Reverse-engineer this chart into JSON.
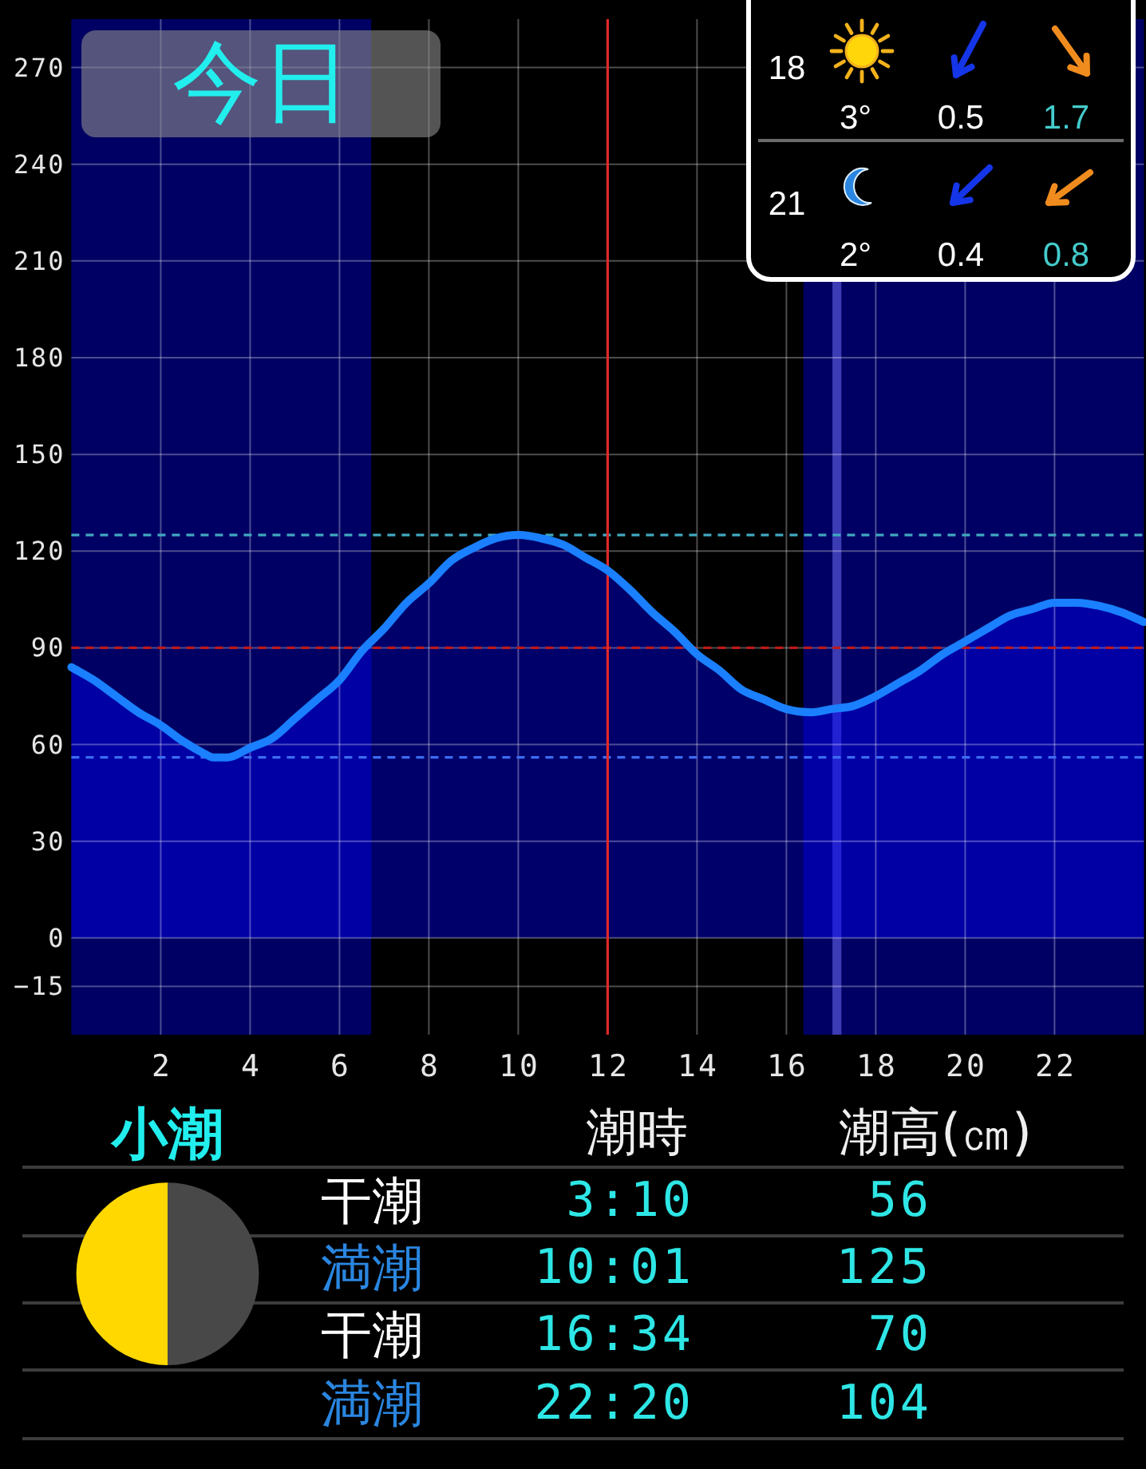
{
  "chart_data": {
    "type": "area",
    "title": "今日",
    "x": [
      0,
      0.5,
      1,
      1.5,
      2,
      2.5,
      3,
      3.17,
      3.5,
      4,
      4.5,
      5,
      5.5,
      6,
      6.5,
      7,
      7.5,
      8,
      8.5,
      9,
      9.5,
      10.02,
      10.5,
      11,
      11.5,
      12,
      12.5,
      13,
      13.5,
      14,
      14.5,
      15,
      15.5,
      16,
      16.57,
      17,
      17.5,
      18,
      18.5,
      19,
      19.5,
      20,
      20.5,
      21,
      21.5,
      22,
      22.33,
      22.5,
      23,
      23.5,
      24
    ],
    "values": [
      84,
      80,
      75,
      70,
      66,
      61,
      57,
      56,
      56,
      59,
      62,
      68,
      74,
      80,
      89,
      96,
      104,
      110,
      117,
      121,
      124,
      125,
      124,
      122,
      118,
      114,
      108,
      101,
      95,
      88,
      83,
      77,
      74,
      71,
      70,
      71,
      72,
      75,
      79,
      83,
      88,
      92,
      96,
      100,
      102,
      104,
      104,
      104,
      103,
      101,
      98
    ],
    "color": "#1a80ff",
    "xlim": [
      0,
      24
    ],
    "xticks": [
      2,
      4,
      6,
      8,
      10,
      12,
      14,
      16,
      18,
      20,
      22
    ],
    "ylim": [
      -30,
      285
    ],
    "yticks": [
      {
        "value": -15,
        "label": "−15"
      },
      0,
      30,
      60,
      90,
      120,
      150,
      180,
      210,
      240,
      270
    ],
    "grid": true,
    "ref_lines": [
      {
        "axis": "y",
        "value": 125,
        "color": "#40a8c0",
        "line_style": "dashed"
      },
      {
        "axis": "y",
        "value": 90,
        "color": "#c01818",
        "line_style": "dashed"
      },
      {
        "axis": "y",
        "value": 56,
        "color": "#3c6cf0",
        "line_style": "dashed"
      },
      {
        "axis": "x",
        "value": 12,
        "color": "#e02828"
      }
    ],
    "bands": [
      {
        "axis": "x",
        "from": 0,
        "to": 6.71,
        "color": "#000064"
      },
      {
        "axis": "x",
        "from": 16.38,
        "to": 24,
        "color": "#000064"
      },
      {
        "axis": "x",
        "from": 17.03,
        "to": 17.23,
        "color": "#3c3cb4"
      }
    ],
    "annotations": [
      "18",
      "3°",
      "0.5",
      "1.7",
      "21",
      "2°",
      "0.4",
      "0.8",
      "小潮",
      "潮時",
      "潮高(㎝)",
      "干潮",
      "3:10",
      "56",
      "満潮",
      "10:01",
      "125",
      "干潮",
      "16:34",
      "70",
      "満潮",
      "22:20",
      "104"
    ]
  }
}
